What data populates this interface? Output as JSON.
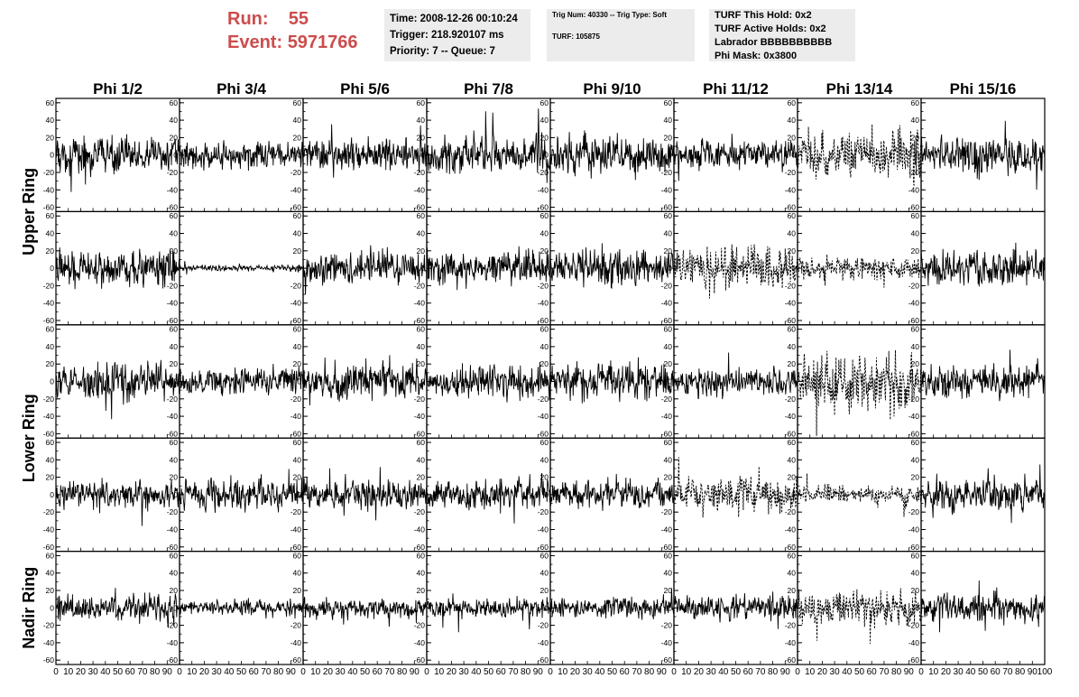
{
  "run": {
    "run_label": "Run:",
    "run_value": "55",
    "event_label": "Event:",
    "event_value": "5971766"
  },
  "info_time": {
    "time": "Time: 2008-12-26 00:10:24",
    "trigger": "Trigger: 218.920107 ms",
    "priority": "Priority: 7 -- Queue: 7"
  },
  "info_trig": {
    "trig": "Trig Num: 40330 -- Trig Type: Soft",
    "turf": "TURF: 105875"
  },
  "info_turf": {
    "this_hold": "TURF This Hold: 0x2",
    "active_holds": "TURF Active Holds: 0x2",
    "labrador": "Labrador BBBBBBBBBB",
    "phi_mask": "Phi Mask: 0x3800"
  },
  "columns": [
    "Phi 1/2",
    "Phi 3/4",
    "Phi 5/6",
    "Phi 7/8",
    "Phi 9/10",
    "Phi 11/12",
    "Phi 13/14",
    "Phi 15/16"
  ],
  "ring_labels": [
    "Upper Ring",
    "Lower Ring",
    "Nadir Ring"
  ],
  "colors": {
    "trace": "#000000",
    "header_red": "#cc4c4c",
    "info_bg": "#ececec"
  },
  "chart_data": {
    "type": "line",
    "description_grid": "5 rows x 8 columns of waveform panels",
    "x_range": [
      0,
      100
    ],
    "y_range": [
      -65,
      65
    ],
    "y_ticks": [
      -60,
      -40,
      -20,
      0,
      20,
      40,
      60
    ],
    "x_ticks": [
      0,
      10,
      20,
      30,
      40,
      50,
      60,
      70,
      80,
      90,
      100
    ],
    "row_groups": [
      {
        "label": "Upper Ring",
        "rows": [
          0,
          1
        ]
      },
      {
        "label": "Lower Ring",
        "rows": [
          2,
          3
        ]
      },
      {
        "label": "Nadir Ring",
        "rows": [
          4
        ]
      }
    ],
    "amplitude": [
      [
        18,
        14,
        16,
        18,
        20,
        14,
        22,
        18
      ],
      [
        18,
        3,
        16,
        17,
        18,
        20,
        12,
        18
      ],
      [
        18,
        14,
        18,
        15,
        18,
        13,
        28,
        16
      ],
      [
        13,
        16,
        15,
        14,
        14,
        18,
        9,
        16
      ],
      [
        14,
        8,
        10,
        10,
        10,
        12,
        16,
        14
      ]
    ],
    "dashed": [
      [
        false,
        false,
        false,
        false,
        false,
        false,
        true,
        false
      ],
      [
        false,
        false,
        false,
        false,
        false,
        true,
        true,
        false
      ],
      [
        false,
        false,
        false,
        false,
        false,
        false,
        true,
        false
      ],
      [
        false,
        false,
        false,
        false,
        false,
        true,
        true,
        false
      ],
      [
        false,
        false,
        false,
        false,
        false,
        false,
        true,
        false
      ]
    ]
  }
}
